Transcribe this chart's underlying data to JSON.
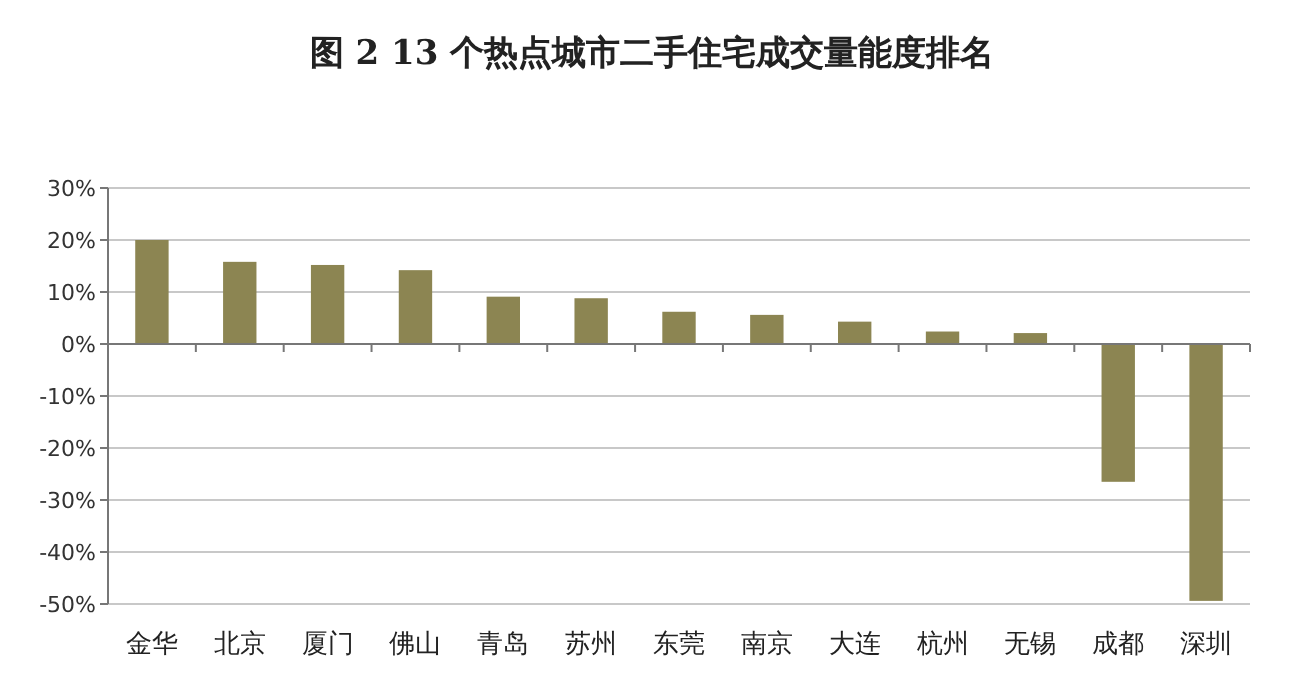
{
  "chart_data": {
    "type": "bar",
    "title": "图 2   13 个热点城市二手住宅成交量能度排名",
    "categories": [
      "金华",
      "北京",
      "厦门",
      "佛山",
      "青岛",
      "苏州",
      "东莞",
      "南京",
      "大连",
      "杭州",
      "无锡",
      "成都",
      "深圳"
    ],
    "values": [
      20,
      15.8,
      15.2,
      14.2,
      9.1,
      8.8,
      6.2,
      5.6,
      4.3,
      2.4,
      2.1,
      -26.5,
      -49.4
    ],
    "color": "#8c8552",
    "ylim": [
      -50,
      30
    ],
    "yticks": [
      {
        "value": -50,
        "label": "-50%"
      },
      {
        "value": -40,
        "label": "-40%"
      },
      {
        "value": -30,
        "label": "-30%"
      },
      {
        "value": -20,
        "label": "-20%"
      },
      {
        "value": -10,
        "label": "-10%"
      },
      {
        "value": 0,
        "label": "0%"
      },
      {
        "value": 10,
        "label": "10%"
      },
      {
        "value": 20,
        "label": "20%"
      },
      {
        "value": 30,
        "label": "30%"
      }
    ],
    "grid": "y"
  }
}
